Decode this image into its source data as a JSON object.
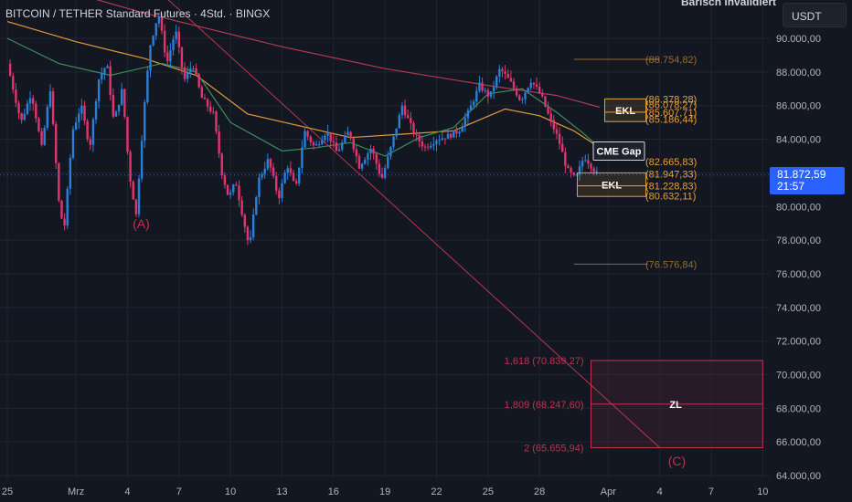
{
  "header": {
    "title": "BITCOIN / TETHER Standard Futures · 4Std. · BINGX",
    "status": "Bärisch invalidiert",
    "currency_button": "USDT"
  },
  "price_tag": {
    "price": "81.872,59",
    "countdown": "21:57"
  },
  "colors": {
    "background": "#131722",
    "candle_up": "#2a7fd6",
    "candle_down": "#e0356f",
    "ma_red": "#b03a52",
    "ma_orange": "#e39a3a",
    "ma_green": "#3c8f5a",
    "annotation_orange": "#e8a13a",
    "annotation_red": "#b8364e",
    "current_price_line": "#2962ff"
  },
  "chart_data": {
    "type": "candlestick",
    "y_axis": {
      "range": [
        63500,
        91500
      ],
      "ticks": [
        "64.000,00",
        "66.000,00",
        "68.000,00",
        "70.000,00",
        "72.000,00",
        "74.000,00",
        "76.000,00",
        "78.000,00",
        "80.000,00",
        "82.000,00",
        "84.000,00",
        "86.000,00",
        "88.000,00",
        "90.000,00"
      ]
    },
    "x_axis": {
      "unit": "date (Feb 25 – Apr 10)",
      "ticks": [
        {
          "label": "25",
          "day": 0
        },
        {
          "label": "Mrz",
          "day": 4
        },
        {
          "label": "4",
          "day": 7
        },
        {
          "label": "7",
          "day": 10
        },
        {
          "label": "10",
          "day": 13
        },
        {
          "label": "13",
          "day": 16
        },
        {
          "label": "16",
          "day": 19
        },
        {
          "label": "19",
          "day": 22
        },
        {
          "label": "22",
          "day": 25
        },
        {
          "label": "25",
          "day": 28
        },
        {
          "label": "28",
          "day": 31
        },
        {
          "label": "Apr",
          "day": 35
        },
        {
          "label": "4",
          "day": 38
        },
        {
          "label": "7",
          "day": 41
        },
        {
          "label": "10",
          "day": 44
        }
      ]
    },
    "price_path": [
      [
        0.0,
        88500
      ],
      [
        0.8,
        85000
      ],
      [
        1.4,
        86800
      ],
      [
        2.0,
        83500
      ],
      [
        2.5,
        87000
      ],
      [
        3.0,
        80300
      ],
      [
        3.3,
        78500
      ],
      [
        3.8,
        84500
      ],
      [
        4.3,
        86000
      ],
      [
        4.8,
        83500
      ],
      [
        5.3,
        87500
      ],
      [
        5.8,
        88500
      ],
      [
        6.2,
        85000
      ],
      [
        6.7,
        87000
      ],
      [
        7.1,
        82000
      ],
      [
        7.5,
        79500
      ],
      [
        7.9,
        85000
      ],
      [
        8.3,
        89500
      ],
      [
        8.8,
        91500
      ],
      [
        9.3,
        88500
      ],
      [
        9.8,
        90500
      ],
      [
        10.3,
        87500
      ],
      [
        10.8,
        88500
      ],
      [
        11.3,
        86500
      ],
      [
        12.0,
        85500
      ],
      [
        12.5,
        82000
      ],
      [
        12.9,
        80500
      ],
      [
        13.3,
        81500
      ],
      [
        13.7,
        79500
      ],
      [
        14.1,
        77500
      ],
      [
        14.6,
        81500
      ],
      [
        15.2,
        82800
      ],
      [
        15.8,
        80500
      ],
      [
        16.3,
        82500
      ],
      [
        16.8,
        81000
      ],
      [
        17.3,
        84500
      ],
      [
        17.9,
        83500
      ],
      [
        18.6,
        84500
      ],
      [
        19.2,
        83200
      ],
      [
        19.9,
        84500
      ],
      [
        20.5,
        82400
      ],
      [
        21.2,
        83500
      ],
      [
        21.8,
        81600
      ],
      [
        22.4,
        83700
      ],
      [
        23.0,
        86000
      ],
      [
        23.7,
        84300
      ],
      [
        24.3,
        83500
      ],
      [
        25.0,
        84000
      ],
      [
        25.7,
        84200
      ],
      [
        26.3,
        84500
      ],
      [
        26.9,
        85700
      ],
      [
        27.5,
        87200
      ],
      [
        28.1,
        86500
      ],
      [
        28.7,
        88200
      ],
      [
        29.3,
        87400
      ],
      [
        29.9,
        86300
      ],
      [
        30.5,
        87500
      ],
      [
        31.1,
        86600
      ],
      [
        31.6,
        85200
      ],
      [
        32.1,
        84000
      ],
      [
        32.6,
        82200
      ],
      [
        33.1,
        81600
      ],
      [
        33.6,
        83000
      ],
      [
        34.1,
        82300
      ],
      [
        34.4,
        81873
      ]
    ],
    "moving_averages": [
      {
        "color": "red",
        "points": [
          [
            0,
            93800
          ],
          [
            8,
            91500
          ],
          [
            16,
            89500
          ],
          [
            22,
            88200
          ],
          [
            28,
            87200
          ],
          [
            32,
            86600
          ],
          [
            34.5,
            85900
          ]
        ]
      },
      {
        "color": "orange",
        "points": [
          [
            0,
            91000
          ],
          [
            4,
            89800
          ],
          [
            8,
            88800
          ],
          [
            11,
            87800
          ],
          [
            14,
            85500
          ],
          [
            17,
            84800
          ],
          [
            20,
            84100
          ],
          [
            23,
            84300
          ],
          [
            26,
            84500
          ],
          [
            29,
            85800
          ],
          [
            31,
            85400
          ],
          [
            33,
            84500
          ],
          [
            34.5,
            83500
          ]
        ]
      },
      {
        "color": "green",
        "points": [
          [
            0,
            90000
          ],
          [
            3,
            88500
          ],
          [
            6,
            87800
          ],
          [
            9,
            88500
          ],
          [
            11,
            88000
          ],
          [
            13,
            85000
          ],
          [
            16,
            83300
          ],
          [
            18,
            83500
          ],
          [
            20,
            83800
          ],
          [
            22,
            83000
          ],
          [
            24,
            84100
          ],
          [
            26,
            84700
          ],
          [
            28,
            86700
          ],
          [
            30,
            87000
          ],
          [
            32,
            85600
          ],
          [
            33.5,
            84400
          ],
          [
            34.5,
            83500
          ]
        ]
      }
    ],
    "trend_line": {
      "from": [
        7,
        94500
      ],
      "to": [
        38,
        65655
      ]
    },
    "annotations": {
      "orange_levels": [
        {
          "text": "(88.754,82)",
          "day_from": 33.0,
          "day_to": 38.0,
          "price": 88754.82
        },
        {
          "text": "(86.378,28)",
          "price": 86378.28
        },
        {
          "text": "(86.078,27)",
          "price": 86078.27
        },
        {
          "text": "(85.607,71)",
          "price": 85607.71
        },
        {
          "text": "(85.186,44)",
          "price": 85186.44
        },
        {
          "text": "(82.665,83)",
          "price": 82665.83
        },
        {
          "text": "(81.947,33)",
          "price": 81947.33
        },
        {
          "text": "(81.228,83)",
          "price": 81228.83
        },
        {
          "text": "(80.632,11)",
          "price": 80632.11
        },
        {
          "text": "(76.576,84)",
          "day_from": 33.0,
          "day_to": 37.3,
          "price": 76576.84
        }
      ],
      "ekl_upper": {
        "label": "EKL",
        "day_from": 34.8,
        "day_to": 37.2,
        "price_from": 85050,
        "price_to": 86400
      },
      "ekl_lower": {
        "label": "EKL",
        "day_from": 33.2,
        "day_to": 37.2,
        "price_from": 80600,
        "price_to": 82000
      },
      "cme_gap": {
        "label": "CME Gap",
        "price": 83300
      },
      "wave_labels": [
        {
          "text": "(A)",
          "day": 7.8,
          "price": 78700
        },
        {
          "text": "(C)",
          "day": 39.0,
          "price": 64600
        }
      ],
      "fib_levels": [
        {
          "text": "1,618 (70.839,27)",
          "price": 70839.27
        },
        {
          "text": "1,809 (68.247,60)",
          "price": 68247.6
        },
        {
          "text": "2 (65.655,94)",
          "price": 65655.94
        }
      ],
      "target_zone": {
        "label": "ZL",
        "day_from": 34.0,
        "day_to": 44.0,
        "price_from": 65655.94,
        "price_to": 70839.27
      }
    }
  }
}
